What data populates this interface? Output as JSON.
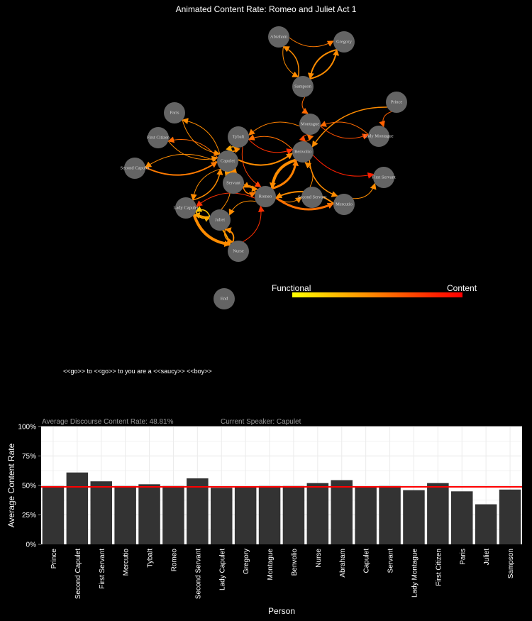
{
  "title": "Animated Content Rate: Romeo and Juliet Act 1",
  "network": {
    "nodes": [
      "Abraham",
      "Gregory",
      "Sampson",
      "Prince",
      "Paris",
      "Montague",
      "Tybalt",
      "Lady Montague",
      "First Citizen",
      "Benvolio",
      "Capulet",
      "Second Capulet",
      "First Servant",
      "Servant",
      "Romeo",
      "Second Servant",
      "Mercutio",
      "Lady Capulet",
      "Juliet",
      "Nurse",
      "End"
    ],
    "edges": [
      [
        "Sampson",
        "Gregory",
        2,
        "#ff8c00"
      ],
      [
        "Gregory",
        "Sampson",
        2,
        "#ff8c00"
      ],
      [
        "Abraham",
        "Gregory",
        1,
        "#ff7a00"
      ],
      [
        "Sampson",
        "Abraham",
        1.5,
        "#ff8c00"
      ],
      [
        "Abraham",
        "Sampson",
        1,
        "#ff8c00"
      ],
      [
        "Sampson",
        "Montague",
        1,
        "#ff6a00"
      ],
      [
        "Prince",
        "Benvolio",
        1.5,
        "#ff8c00"
      ],
      [
        "Prince",
        "Lady Montague",
        1,
        "#ff6000"
      ],
      [
        "Montague",
        "Lady Montague",
        1,
        "#ff5000"
      ],
      [
        "Lady Montague",
        "Montague",
        1,
        "#ff6a00"
      ],
      [
        "Montague",
        "Benvolio",
        1,
        "#ff4a00"
      ],
      [
        "Benvolio",
        "Montague",
        1,
        "#ff7000"
      ],
      [
        "Tybalt",
        "Benvolio",
        1,
        "#ff3000"
      ],
      [
        "Benvolio",
        "Tybalt",
        1,
        "#ff7000"
      ],
      [
        "Benvolio",
        "First Servant",
        1,
        "#ff2000"
      ],
      [
        "Benvolio",
        "Romeo",
        4,
        "#ff8c00"
      ],
      [
        "Romeo",
        "Benvolio",
        3,
        "#ff8000"
      ],
      [
        "Capulet",
        "Benvolio",
        2,
        "#ff8c00"
      ],
      [
        "Capulet",
        "Tybalt",
        2,
        "#ff8c00"
      ],
      [
        "Tybalt",
        "Capulet",
        1.5,
        "#ffa500"
      ],
      [
        "Paris",
        "Capulet",
        1,
        "#ff8c00"
      ],
      [
        "Capulet",
        "Paris",
        1,
        "#ff8c00"
      ],
      [
        "First Citizen",
        "Capulet",
        1,
        "#ff8c00"
      ],
      [
        "Capulet",
        "First Citizen",
        1,
        "#ff6a00"
      ],
      [
        "Second Capulet",
        "Capulet",
        2,
        "#ff7a00"
      ],
      [
        "Capulet",
        "Second Capulet",
        1,
        "#ff8c00"
      ],
      [
        "Servant",
        "Capulet",
        1.5,
        "#ff8c00"
      ],
      [
        "Capulet",
        "Servant",
        1.5,
        "#ffa500"
      ],
      [
        "Romeo",
        "Servant",
        2,
        "#ff8c00"
      ],
      [
        "Servant",
        "Romeo",
        1.5,
        "#ff7a00"
      ],
      [
        "Romeo",
        "Second Servant",
        1,
        "#ff8c00"
      ],
      [
        "Romeo",
        "Mercutio",
        3,
        "#ff7000"
      ],
      [
        "Mercutio",
        "Romeo",
        2,
        "#ff8c00"
      ],
      [
        "Mercutio",
        "First Servant",
        1,
        "#ff8c00"
      ],
      [
        "Romeo",
        "Juliet",
        1,
        "#ff8c00"
      ],
      [
        "Romeo",
        "Lady Capulet",
        1,
        "#ff3000"
      ],
      [
        "Lady Capulet",
        "Capulet",
        1.5,
        "#ff8c00"
      ],
      [
        "Capulet",
        "Lady Capulet",
        1,
        "#ff8c00"
      ],
      [
        "Lady Capulet",
        "Juliet",
        2,
        "#ffb000"
      ],
      [
        "Juliet",
        "Lady Capulet",
        1.5,
        "#ffc800"
      ],
      [
        "Lady Capulet",
        "Nurse",
        4,
        "#ff8c00"
      ],
      [
        "Nurse",
        "Lady Capulet",
        2,
        "#ffa500"
      ],
      [
        "Nurse",
        "Juliet",
        2,
        "#ff8c00"
      ],
      [
        "Juliet",
        "Nurse",
        1.5,
        "#ff8c00"
      ],
      [
        "Nurse",
        "Romeo",
        1,
        "#ff3000"
      ],
      [
        "Benvolio",
        "Mercutio",
        1.5,
        "#ff8c00"
      ],
      [
        "Second Servant",
        "Benvolio",
        1,
        "#ff8c00"
      ],
      [
        "Montague",
        "Tybalt",
        1,
        "#ff8000"
      ],
      [
        "Tybalt",
        "Romeo",
        1,
        "#ff4000"
      ],
      [
        "Juliet",
        "Capulet",
        1,
        "#ff8c00"
      ],
      [
        "Capulet",
        "Romeo",
        1,
        "#ff8c00"
      ]
    ]
  },
  "legend": {
    "low_label": "Functional",
    "high_label": "Content",
    "low_color": "#ffff00",
    "high_color": "#ff0000"
  },
  "current_line": "<<go>> to <<go>> to you are a <<saucy>> <<boy>>",
  "stats": {
    "avg_rate_text": "Average Discourse Content Rate:  48.81%",
    "speaker_text": "Current Speaker:   Capulet"
  },
  "chart_data": {
    "type": "bar",
    "categories": [
      "Prince",
      "Second Capulet",
      "First Servant",
      "Mercutio",
      "Tybalt",
      "Romeo",
      "Second Servant",
      "Lady Capulet",
      "Gregory",
      "Montague",
      "Benvolio",
      "Nurse",
      "Abraham",
      "Capulet",
      "Servant",
      "Lady Montague",
      "First Citizen",
      "Paris",
      "Juliet",
      "Sampson"
    ],
    "values": [
      49.5,
      61,
      53.5,
      49.5,
      51,
      49.5,
      56,
      48,
      48.5,
      49.5,
      49.5,
      52,
      54.5,
      48.5,
      49.5,
      46,
      52,
      45,
      34,
      46.5
    ],
    "reference_line": 48.81,
    "reference_color": "#ff0000",
    "bar_color": "#333333",
    "xlabel": "Person",
    "ylabel": "Average Content Rate",
    "ylim": [
      0,
      100
    ],
    "yticks": [
      "0%",
      "25%",
      "50%",
      "75%",
      "100%"
    ],
    "grid": true
  }
}
